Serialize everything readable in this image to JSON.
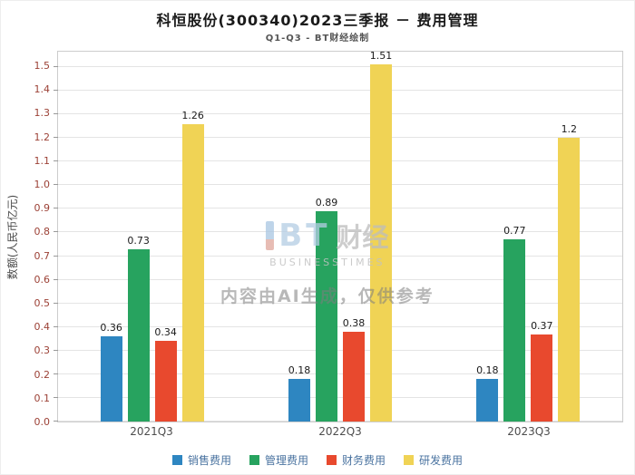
{
  "chart_data": {
    "type": "bar",
    "title": "科恒股份(300340)2023三季报 － 费用管理",
    "subtitle": "Q1-Q3 - BT财经绘制",
    "ylabel": "数额(人民币亿元)",
    "xlabel": "",
    "categories": [
      "2021Q3",
      "2022Q3",
      "2023Q3"
    ],
    "series": [
      {
        "name": "销售费用",
        "color": "#2e86c1",
        "values": [
          0.36,
          0.18,
          0.18
        ]
      },
      {
        "name": "管理费用",
        "color": "#27a35f",
        "values": [
          0.73,
          0.89,
          0.77
        ]
      },
      {
        "name": "财务费用",
        "color": "#e8492e",
        "values": [
          0.34,
          0.38,
          0.37
        ]
      },
      {
        "name": "研发费用",
        "color": "#f0d355",
        "values": [
          1.26,
          1.51,
          1.2
        ]
      }
    ],
    "ylim": [
      0,
      1.565
    ],
    "yticks": [
      0.0,
      0.1,
      0.2,
      0.3,
      0.4,
      0.5,
      0.6,
      0.7,
      0.8,
      0.9,
      1.0,
      1.1,
      1.2,
      1.3,
      1.4,
      1.5
    ],
    "grid": true,
    "legend_position": "bottom"
  },
  "watermark": {
    "logo_text": "BT",
    "logo_suffix": "财经",
    "logo_subtext": "BUSINESSTIMES",
    "notice": "内容由AI生成，仅供参考"
  }
}
